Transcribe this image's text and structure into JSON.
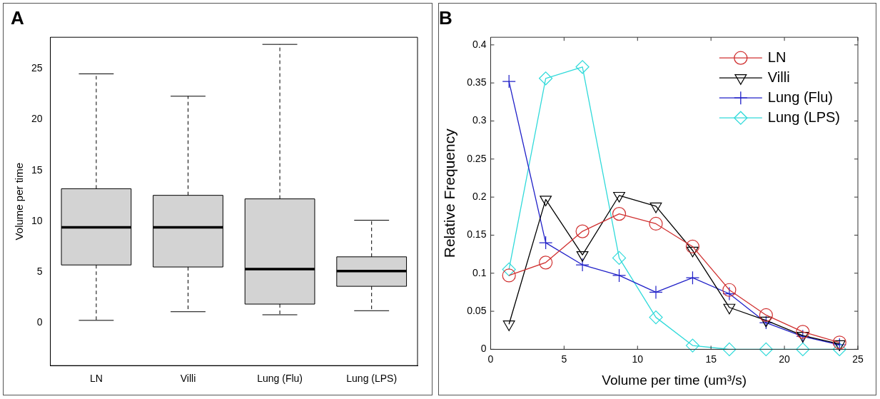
{
  "chart_data": [
    {
      "type": "box",
      "title": "A",
      "ylabel": "Volume per time",
      "categories": [
        "LN",
        "Villi",
        "Lung (Flu)",
        "Lung (LPS)"
      ],
      "color": "#d3d3d3",
      "ylim": [
        -4.2,
        28.1
      ],
      "yticks": [
        0,
        5,
        10,
        15,
        20,
        25
      ],
      "grid": false,
      "legend": false,
      "boxes": [
        {
          "low": 0.25,
          "q1": 5.7,
          "median": 9.4,
          "q3": 13.2,
          "high": 24.5
        },
        {
          "low": 1.1,
          "q1": 5.5,
          "median": 9.4,
          "q3": 12.55,
          "high": 22.3
        },
        {
          "low": 0.8,
          "q1": 1.85,
          "median": 5.3,
          "q3": 12.2,
          "high": 27.4
        },
        {
          "low": 1.2,
          "q1": 3.6,
          "median": 5.1,
          "q3": 6.5,
          "high": 10.1
        }
      ]
    },
    {
      "type": "line",
      "title": "B",
      "xlabel": "Volume per time (um³/s)",
      "ylabel": "Relative Frequency",
      "x": [
        1.25,
        3.75,
        6.25,
        8.75,
        11.25,
        13.75,
        16.25,
        18.75,
        21.25,
        23.75
      ],
      "xlim": [
        0,
        25
      ],
      "xticks": [
        0,
        5,
        10,
        15,
        20,
        25
      ],
      "ylim": [
        0,
        0.41
      ],
      "yticks": [
        0,
        0.05,
        0.1,
        0.15,
        0.2,
        0.25,
        0.3,
        0.35,
        0.4
      ],
      "grid": false,
      "legend": "top right",
      "line_style": "solid",
      "series": [
        {
          "name": "LN",
          "color": "#d03030",
          "marker": "circle",
          "values": [
            0.097,
            0.114,
            0.155,
            0.178,
            0.165,
            0.135,
            0.078,
            0.045,
            0.023,
            0.009
          ]
        },
        {
          "name": "Villi",
          "color": "#000000",
          "marker": "triangle",
          "values": [
            0.033,
            0.197,
            0.124,
            0.202,
            0.188,
            0.13,
            0.055,
            0.038,
            0.018,
            0.007
          ]
        },
        {
          "name": "Lung (Flu)",
          "color": "#2020c8",
          "marker": "cross",
          "values": [
            0.352,
            0.14,
            0.111,
            0.097,
            0.075,
            0.094,
            0.073,
            0.035,
            0.017,
            0.006
          ]
        },
        {
          "name": "Lung (LPS)",
          "color": "#30dada",
          "marker": "diamond",
          "values": [
            0.105,
            0.356,
            0.371,
            0.12,
            0.042,
            0.005,
            0,
            0,
            0,
            0
          ]
        }
      ]
    }
  ]
}
